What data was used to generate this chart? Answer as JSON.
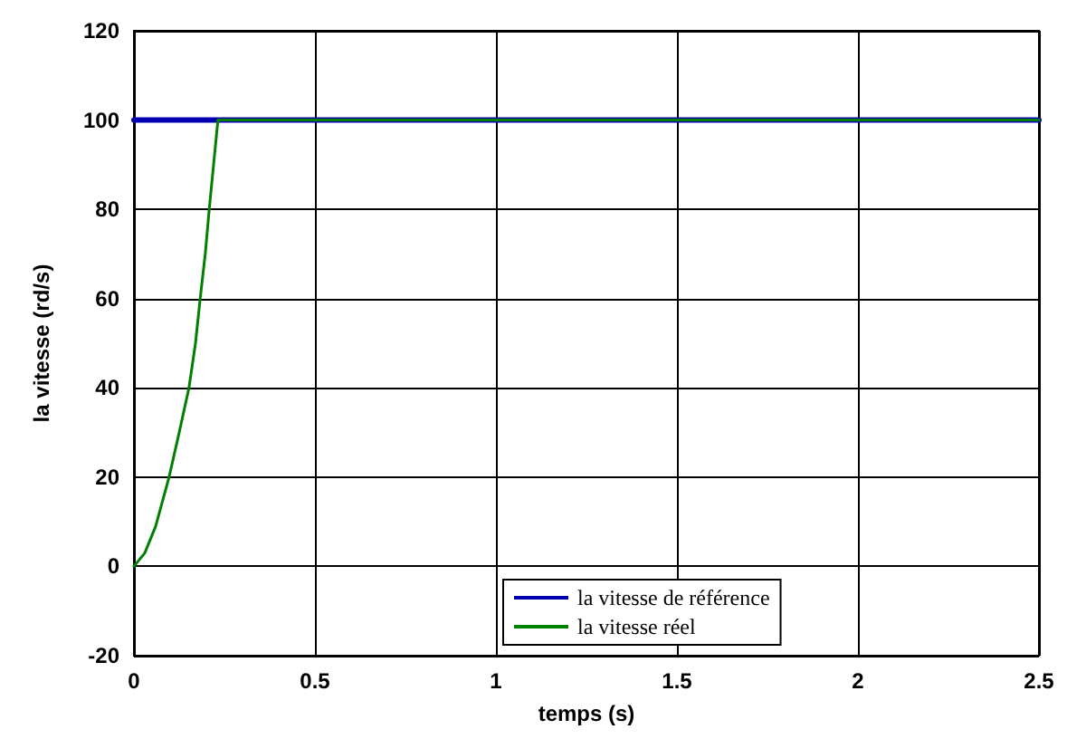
{
  "chart_data": {
    "type": "line",
    "xlabel": "temps (s)",
    "ylabel": "la vitesse (rd/s)",
    "xlim": [
      0,
      2.5
    ],
    "xticks": [
      0,
      0.5,
      1,
      1.5,
      2,
      2.5
    ],
    "ylim": [
      -20,
      120
    ],
    "yticks": [
      -20,
      0,
      20,
      40,
      60,
      80,
      100,
      120
    ],
    "grid": true,
    "legend": "bottom",
    "marker": "none",
    "line_style": "solid",
    "series": [
      {
        "name": "la vitesse de référence",
        "color": "#0000b0",
        "x": [
          0,
          2.5
        ],
        "values": [
          100,
          100
        ]
      },
      {
        "name": "la vitesse réel",
        "color": "#008000",
        "x": [
          0,
          0.03,
          0.06,
          0.097,
          0.125,
          0.152,
          0.17,
          0.183,
          0.197,
          0.208,
          0.22,
          0.232,
          2.5
        ],
        "values": [
          0,
          3,
          9,
          20,
          30,
          40,
          50,
          60,
          70,
          80,
          90,
          100,
          100
        ]
      }
    ]
  }
}
